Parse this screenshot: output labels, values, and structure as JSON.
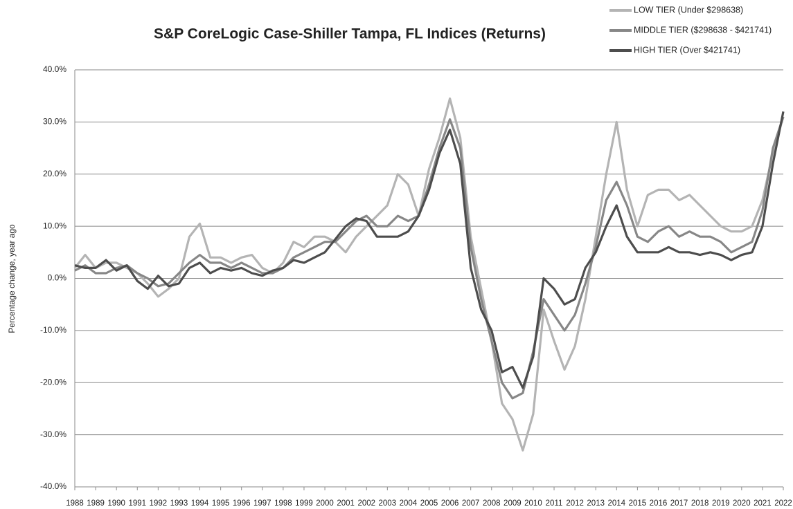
{
  "chart_data": {
    "type": "line",
    "title": "S&P CoreLogic Case-Shiller Tampa, FL Indices (Returns)",
    "y_label": "Percentage change, year ago",
    "xlim": [
      1988,
      2022
    ],
    "xticks": [
      1988,
      1989,
      1990,
      1991,
      1992,
      1993,
      1994,
      1995,
      1996,
      1997,
      1998,
      1999,
      2000,
      2001,
      2002,
      2003,
      2004,
      2005,
      2006,
      2007,
      2008,
      2009,
      2010,
      2011,
      2012,
      2013,
      2014,
      2015,
      2016,
      2017,
      2018,
      2019,
      2020,
      2021,
      2022
    ],
    "ylim": [
      -40,
      40
    ],
    "yticks": [
      {
        "value": -40,
        "label": "-40.0%"
      },
      {
        "value": -30,
        "label": "-30.0%"
      },
      {
        "value": -20,
        "label": "-20.0%"
      },
      {
        "value": -10,
        "label": "-10.0%"
      },
      {
        "value": 0,
        "label": "0.0%"
      },
      {
        "value": 10,
        "label": "10.0%"
      },
      {
        "value": 20,
        "label": "20.0%"
      },
      {
        "value": 30,
        "label": "30.0%"
      },
      {
        "value": 40,
        "label": "40.0%"
      }
    ],
    "grid": true,
    "legend": "top-right",
    "x": [
      1988,
      1988.5,
      1989,
      1989.5,
      1990,
      1990.5,
      1991,
      1991.5,
      1992,
      1992.5,
      1993,
      1993.5,
      1994,
      1994.5,
      1995,
      1995.5,
      1996,
      1996.5,
      1997,
      1997.5,
      1998,
      1998.5,
      1999,
      1999.5,
      2000,
      2000.5,
      2001,
      2001.5,
      2002,
      2002.5,
      2003,
      2003.5,
      2004,
      2004.5,
      2005,
      2005.5,
      2006,
      2006.5,
      2007,
      2007.5,
      2008,
      2008.5,
      2009,
      2009.5,
      2010,
      2010.5,
      2011,
      2011.5,
      2012,
      2012.5,
      2013,
      2013.5,
      2014,
      2014.5,
      2015,
      2015.5,
      2016,
      2016.5,
      2017,
      2017.5,
      2018,
      2018.5,
      2019,
      2019.5,
      2020,
      2020.5,
      2021,
      2021.5,
      2022
    ],
    "series": [
      {
        "name": "LOW TIER (Under $298638)",
        "color": "#b4b4b4",
        "values": [
          2,
          4.5,
          2,
          3,
          3,
          2,
          1,
          -1,
          -3.5,
          -2,
          0,
          8,
          10.5,
          4,
          4,
          3,
          4,
          4.5,
          2,
          1,
          3,
          7,
          6,
          8,
          8,
          7,
          5,
          8,
          10,
          12,
          14,
          20,
          18,
          12,
          21,
          27,
          34.5,
          27,
          8,
          -2,
          -12,
          -24,
          -27,
          -33,
          -26,
          -6,
          -12,
          -17.5,
          -13,
          -4,
          8,
          20,
          30,
          17,
          10,
          16,
          17,
          17,
          15,
          16,
          14,
          12,
          10,
          9,
          9,
          10,
          15,
          24,
          31
        ]
      },
      {
        "name": "MIDDLE TIER ($298638 - $421741)",
        "color": "#878787",
        "values": [
          1.5,
          2.5,
          1,
          1,
          2,
          2.5,
          1,
          0,
          -1.5,
          -1,
          1,
          3,
          4.5,
          3,
          3,
          2,
          3,
          2,
          1,
          1,
          2,
          4,
          5,
          6,
          7,
          7,
          9,
          11,
          12,
          10,
          10,
          12,
          11,
          12,
          18,
          25,
          30.5,
          25,
          6,
          -4,
          -12,
          -20,
          -23,
          -22,
          -14,
          -4,
          -7,
          -10,
          -7,
          -1,
          6,
          15,
          18.5,
          14,
          8,
          7,
          9,
          10,
          8,
          9,
          8,
          8,
          7,
          5,
          6,
          7,
          13,
          25,
          31
        ]
      },
      {
        "name": "HIGH TIER (Over $421741)",
        "color": "#4d4d4d",
        "values": [
          2.5,
          2,
          2,
          3.5,
          1.5,
          2.5,
          -0.5,
          -2,
          0.5,
          -1.5,
          -1,
          2,
          3,
          1,
          2,
          1.5,
          2,
          1,
          0.5,
          1.5,
          2,
          3.5,
          3,
          4,
          5,
          7.5,
          10,
          11.5,
          11,
          8,
          8,
          8,
          9,
          12,
          17,
          24,
          28.5,
          22,
          2,
          -6,
          -10,
          -18,
          -17,
          -21,
          -15,
          0,
          -2,
          -5,
          -4,
          2,
          5,
          10,
          14,
          8,
          5,
          5,
          5,
          6,
          5,
          5,
          4.5,
          5,
          4.5,
          3.5,
          4.5,
          5,
          10,
          22,
          32
        ]
      }
    ]
  }
}
